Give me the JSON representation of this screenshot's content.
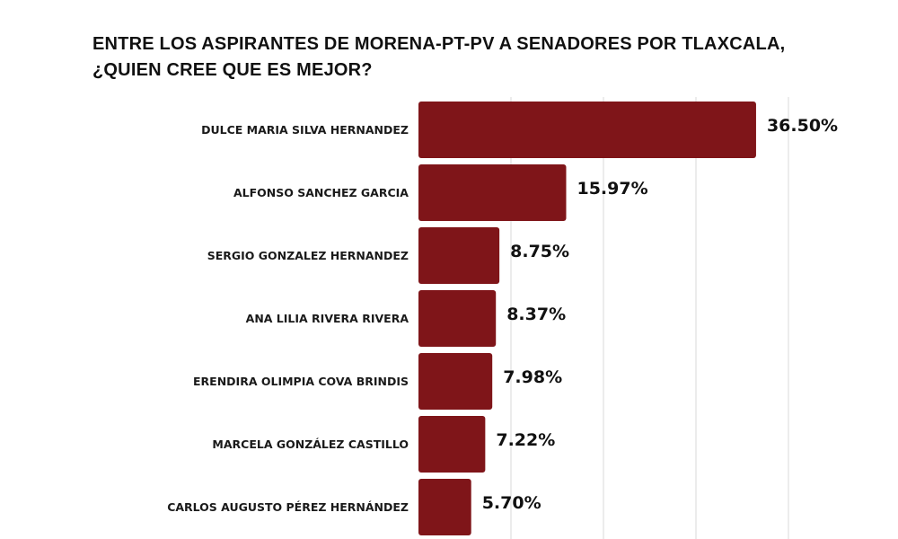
{
  "chart_data": {
    "type": "bar",
    "orientation": "horizontal",
    "title_lines": [
      "ENTRE LOS ASPIRANTES DE MORENA-PT-PV A SENADORES POR TLAXCALA,",
      "¿QUIEN CREE QUE ES MEJOR?"
    ],
    "categories": [
      "DULCE MARIA SILVA HERNANDEZ",
      "ALFONSO SANCHEZ GARCIA",
      "SERGIO GONZALEZ HERNANDEZ",
      "ANA LILIA RIVERA RIVERA",
      "ERENDIRA OLIMPIA COVA BRINDIS",
      "MARCELA GONZÁLEZ CASTILLO",
      "CARLOS AUGUSTO PÉREZ HERNÁNDEZ"
    ],
    "values": [
      36.5,
      15.97,
      8.75,
      8.37,
      7.98,
      7.22,
      5.7
    ],
    "value_labels": [
      "36.50%",
      "15.97%",
      "8.75%",
      "8.37%",
      "7.98%",
      "7.22%",
      "5.70%"
    ],
    "xlim": [
      0,
      40
    ],
    "grid": "vertical",
    "bar_color": "#7f1519",
    "grid_color": "#d9d9d9"
  }
}
